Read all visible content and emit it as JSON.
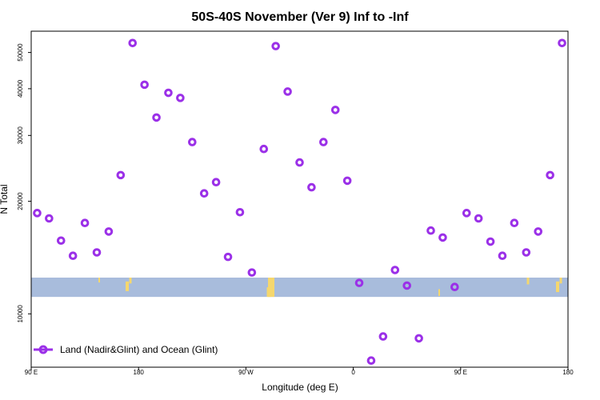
{
  "chart_data": {
    "type": "scatter",
    "title": "50S-40S November (Ver 9)   Inf to -Inf",
    "xlabel": "Longitude (deg E)",
    "ylabel": "N Total",
    "x_ticks": [
      {
        "value": 90,
        "label": "90 E"
      },
      {
        "value": 180,
        "label": "180"
      },
      {
        "value": 270,
        "label": "90 W"
      },
      {
        "value": 360,
        "label": "0"
      },
      {
        "value": 450,
        "label": "90 E"
      },
      {
        "value": 540,
        "label": "180"
      }
    ],
    "y_ticks": [
      10000,
      20000,
      30000,
      40000,
      50000
    ],
    "xlim": [
      90,
      540
    ],
    "ylim": [
      7200,
      57000
    ],
    "y_scale": "log",
    "map_band": {
      "y_low": 11100,
      "y_high": 12500,
      "ocean_color": "#a8bcdc",
      "land_color": "#f5d76e"
    },
    "series": [
      {
        "name": "Land (Nadir&Glint) and Ocean (Glint)",
        "color": "#9b30e8",
        "points": [
          [
            95,
            18600
          ],
          [
            105,
            18000
          ],
          [
            115,
            15700
          ],
          [
            125,
            14300
          ],
          [
            135,
            17500
          ],
          [
            145,
            14600
          ],
          [
            155,
            16600
          ],
          [
            165,
            23500
          ],
          [
            175,
            53000
          ],
          [
            185,
            41000
          ],
          [
            195,
            33500
          ],
          [
            205,
            39000
          ],
          [
            215,
            37800
          ],
          [
            225,
            28800
          ],
          [
            235,
            21000
          ],
          [
            245,
            22500
          ],
          [
            255,
            14200
          ],
          [
            265,
            18700
          ],
          [
            275,
            12900
          ],
          [
            285,
            27600
          ],
          [
            295,
            52000
          ],
          [
            305,
            39300
          ],
          [
            315,
            25400
          ],
          [
            325,
            21800
          ],
          [
            335,
            28800
          ],
          [
            345,
            35100
          ],
          [
            355,
            22700
          ],
          [
            365,
            12100
          ],
          [
            375,
            7500
          ],
          [
            385,
            8700
          ],
          [
            395,
            13100
          ],
          [
            405,
            11900
          ],
          [
            415,
            8600
          ],
          [
            425,
            16700
          ],
          [
            435,
            16000
          ],
          [
            445,
            11800
          ],
          [
            455,
            18600
          ],
          [
            465,
            18000
          ],
          [
            475,
            15600
          ],
          [
            485,
            14300
          ],
          [
            495,
            17500
          ],
          [
            505,
            14600
          ],
          [
            515,
            16600
          ],
          [
            525,
            23500
          ],
          [
            535,
            53000
          ]
        ]
      }
    ],
    "legend": {
      "position": "bottom-left",
      "entries": [
        "Land (Nadir&Glint) and Ocean (Glint)"
      ]
    },
    "grid": false
  }
}
